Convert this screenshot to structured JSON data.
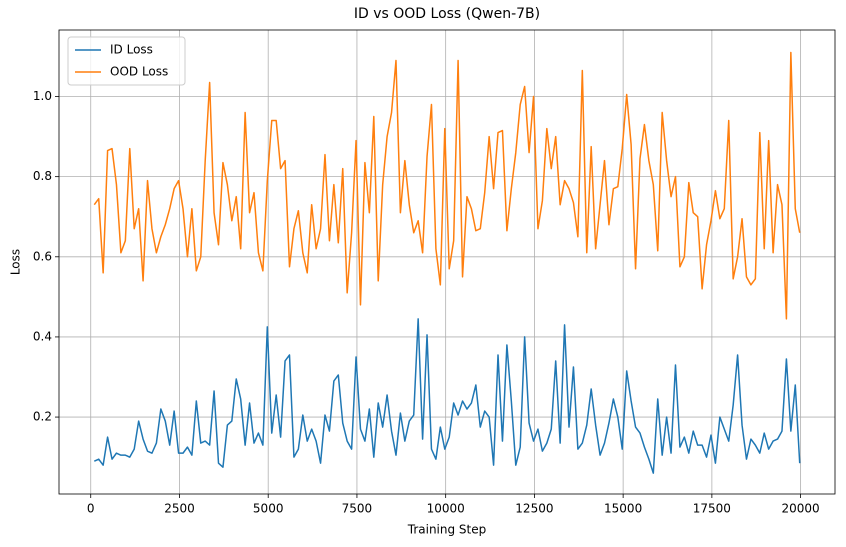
{
  "chart_data": {
    "type": "line",
    "title": "ID vs OOD Loss (Qwen-7B)",
    "xlabel": "Training Step",
    "ylabel": "Loss",
    "x": [
      100,
      225,
      350,
      475,
      600,
      725,
      850,
      975,
      1100,
      1225,
      1350,
      1475,
      1600,
      1725,
      1850,
      1975,
      2100,
      2225,
      2350,
      2475,
      2600,
      2725,
      2850,
      2975,
      3100,
      3225,
      3350,
      3475,
      3600,
      3725,
      3850,
      3975,
      4100,
      4225,
      4350,
      4475,
      4600,
      4725,
      4850,
      4975,
      5100,
      5225,
      5350,
      5475,
      5600,
      5725,
      5850,
      5975,
      6100,
      6225,
      6350,
      6475,
      6600,
      6725,
      6850,
      6975,
      7100,
      7225,
      7350,
      7475,
      7600,
      7725,
      7850,
      7975,
      8100,
      8225,
      8350,
      8475,
      8600,
      8725,
      8850,
      8975,
      9100,
      9225,
      9350,
      9475,
      9600,
      9725,
      9850,
      9975,
      10100,
      10225,
      10350,
      10475,
      10600,
      10725,
      10850,
      10975,
      11100,
      11225,
      11350,
      11475,
      11600,
      11725,
      11850,
      11975,
      12100,
      12225,
      12350,
      12475,
      12600,
      12725,
      12850,
      12975,
      13100,
      13225,
      13350,
      13475,
      13600,
      13725,
      13850,
      13975,
      14100,
      14225,
      14350,
      14475,
      14600,
      14725,
      14850,
      14975,
      15100,
      15225,
      15350,
      15475,
      15600,
      15725,
      15850,
      15975,
      16100,
      16225,
      16350,
      16475,
      16600,
      16725,
      16850,
      16975,
      17100,
      17225,
      17350,
      17475,
      17600,
      17725,
      17850,
      17975,
      18100,
      18225,
      18350,
      18475,
      18600,
      18725,
      18850,
      18975,
      19100,
      19225,
      19350,
      19475,
      19600,
      19725,
      19850,
      19975
    ],
    "series": [
      {
        "name": "ID Loss",
        "color": "#1f77b4",
        "values": [
          0.09,
          0.095,
          0.08,
          0.15,
          0.095,
          0.11,
          0.105,
          0.105,
          0.1,
          0.12,
          0.19,
          0.145,
          0.115,
          0.11,
          0.135,
          0.22,
          0.19,
          0.13,
          0.215,
          0.11,
          0.11,
          0.125,
          0.105,
          0.24,
          0.135,
          0.14,
          0.13,
          0.265,
          0.085,
          0.075,
          0.18,
          0.19,
          0.295,
          0.245,
          0.13,
          0.235,
          0.135,
          0.16,
          0.13,
          0.425,
          0.16,
          0.255,
          0.15,
          0.34,
          0.355,
          0.1,
          0.12,
          0.205,
          0.14,
          0.17,
          0.14,
          0.085,
          0.205,
          0.165,
          0.29,
          0.305,
          0.185,
          0.14,
          0.12,
          0.35,
          0.17,
          0.14,
          0.22,
          0.1,
          0.235,
          0.175,
          0.255,
          0.165,
          0.105,
          0.21,
          0.14,
          0.19,
          0.205,
          0.445,
          0.145,
          0.405,
          0.12,
          0.095,
          0.175,
          0.12,
          0.15,
          0.235,
          0.205,
          0.24,
          0.22,
          0.235,
          0.28,
          0.175,
          0.215,
          0.2,
          0.08,
          0.355,
          0.14,
          0.38,
          0.24,
          0.08,
          0.125,
          0.4,
          0.185,
          0.14,
          0.17,
          0.115,
          0.135,
          0.17,
          0.34,
          0.135,
          0.43,
          0.175,
          0.325,
          0.12,
          0.135,
          0.18,
          0.27,
          0.18,
          0.105,
          0.135,
          0.185,
          0.245,
          0.2,
          0.12,
          0.315,
          0.24,
          0.175,
          0.16,
          0.125,
          0.095,
          0.06,
          0.245,
          0.105,
          0.2,
          0.11,
          0.33,
          0.125,
          0.15,
          0.11,
          0.165,
          0.13,
          0.13,
          0.1,
          0.155,
          0.085,
          0.2,
          0.17,
          0.14,
          0.23,
          0.355,
          0.18,
          0.095,
          0.145,
          0.13,
          0.11,
          0.16,
          0.12,
          0.14,
          0.145,
          0.165,
          0.345,
          0.165,
          0.28,
          0.085
        ]
      },
      {
        "name": "OOD Loss",
        "color": "#ff7f0e",
        "values": [
          0.73,
          0.745,
          0.56,
          0.865,
          0.87,
          0.78,
          0.61,
          0.64,
          0.87,
          0.67,
          0.72,
          0.54,
          0.79,
          0.67,
          0.61,
          0.65,
          0.68,
          0.72,
          0.77,
          0.79,
          0.72,
          0.6,
          0.72,
          0.565,
          0.6,
          0.84,
          1.035,
          0.71,
          0.63,
          0.835,
          0.78,
          0.69,
          0.75,
          0.62,
          0.96,
          0.71,
          0.76,
          0.61,
          0.565,
          0.79,
          0.94,
          0.94,
          0.82,
          0.84,
          0.575,
          0.67,
          0.715,
          0.61,
          0.56,
          0.73,
          0.62,
          0.67,
          0.855,
          0.64,
          0.78,
          0.635,
          0.82,
          0.51,
          0.66,
          0.89,
          0.48,
          0.835,
          0.71,
          0.95,
          0.54,
          0.78,
          0.9,
          0.96,
          1.09,
          0.71,
          0.84,
          0.73,
          0.66,
          0.69,
          0.61,
          0.85,
          0.98,
          0.62,
          0.53,
          0.92,
          0.57,
          0.64,
          1.09,
          0.55,
          0.75,
          0.72,
          0.665,
          0.67,
          0.76,
          0.9,
          0.77,
          0.91,
          0.915,
          0.665,
          0.77,
          0.86,
          0.98,
          1.025,
          0.86,
          1.0,
          0.67,
          0.74,
          0.92,
          0.82,
          0.9,
          0.73,
          0.79,
          0.77,
          0.735,
          0.65,
          1.065,
          0.61,
          0.875,
          0.62,
          0.73,
          0.84,
          0.68,
          0.77,
          0.775,
          0.87,
          1.005,
          0.88,
          0.57,
          0.845,
          0.93,
          0.84,
          0.78,
          0.615,
          0.96,
          0.84,
          0.75,
          0.8,
          0.575,
          0.6,
          0.785,
          0.71,
          0.7,
          0.52,
          0.63,
          0.69,
          0.765,
          0.695,
          0.72,
          0.94,
          0.545,
          0.6,
          0.695,
          0.55,
          0.53,
          0.545,
          0.91,
          0.62,
          0.89,
          0.61,
          0.78,
          0.73,
          0.445,
          1.11,
          0.72,
          0.66
        ]
      }
    ],
    "xlim": [
      -894,
      20969
    ],
    "ylim": [
      0.008,
      1.166
    ],
    "xticks": [
      0,
      2500,
      5000,
      7500,
      10000,
      12500,
      15000,
      17500,
      20000
    ],
    "yticks": [
      0.2,
      0.4,
      0.6,
      0.8,
      {
        "value": 1,
        "label": "1.0"
      }
    ],
    "grid": true,
    "legend": "upper left"
  }
}
